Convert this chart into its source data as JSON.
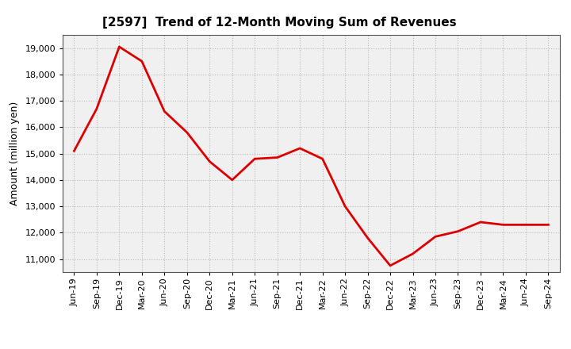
{
  "title": "[2597]  Trend of 12-Month Moving Sum of Revenues",
  "ylabel": "Amount (million yen)",
  "line_color": "#dd0000",
  "background_color": "#ffffff",
  "plot_bg_color": "#f0f0f0",
  "grid_color": "#bbbbbb",
  "ylim": [
    10500,
    19500
  ],
  "yticks": [
    11000,
    12000,
    13000,
    14000,
    15000,
    16000,
    17000,
    18000,
    19000
  ],
  "x_labels": [
    "Jun-19",
    "Sep-19",
    "Dec-19",
    "Mar-20",
    "Jun-20",
    "Sep-20",
    "Dec-20",
    "Mar-21",
    "Jun-21",
    "Sep-21",
    "Dec-21",
    "Mar-22",
    "Jun-22",
    "Sep-22",
    "Dec-22",
    "Mar-23",
    "Jun-23",
    "Sep-23",
    "Dec-23",
    "Mar-24",
    "Jun-24",
    "Sep-24"
  ],
  "values": [
    15100,
    16700,
    19050,
    18500,
    16600,
    15800,
    14700,
    14000,
    14800,
    14850,
    15200,
    14800,
    13000,
    11800,
    10750,
    11200,
    11850,
    12050,
    12400,
    12300,
    12300,
    12300
  ],
  "title_fontsize": 11,
  "ylabel_fontsize": 9,
  "tick_fontsize": 8,
  "line_width": 2.0,
  "figsize": [
    7.2,
    4.4
  ],
  "dpi": 100
}
